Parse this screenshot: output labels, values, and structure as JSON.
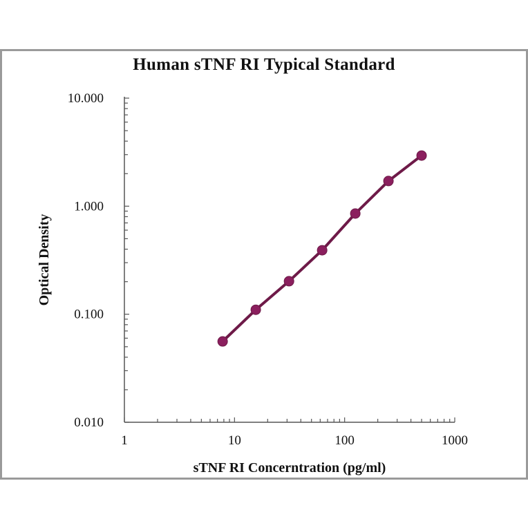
{
  "chart_data": {
    "type": "line",
    "title": "Human sTNF RI Typical Standard",
    "xlabel": "sTNF RI Concerntration (pg/ml)",
    "ylabel": "Optical Density",
    "x_scale": "log",
    "y_scale": "log",
    "xlim": [
      1,
      1000
    ],
    "ylim": [
      0.01,
      10
    ],
    "x_ticks": [
      "1",
      "10",
      "100",
      "1000"
    ],
    "y_ticks": [
      "0.010",
      "0.100",
      "1.000",
      "10.000"
    ],
    "grid": false,
    "legend": null,
    "series": [
      {
        "name": "Standard",
        "color": "#8b1f5e",
        "line_color": "#6e1a48",
        "marker": "circle",
        "x": [
          7.8,
          15.6,
          31.25,
          62.5,
          125,
          250,
          500
        ],
        "y": [
          0.056,
          0.11,
          0.202,
          0.391,
          0.855,
          1.71,
          2.94
        ]
      }
    ]
  },
  "colors": {
    "frame_border": "#9a9a9a",
    "axis": "#555555",
    "marker": "#8b1f5e",
    "line": "#6e1a48"
  }
}
